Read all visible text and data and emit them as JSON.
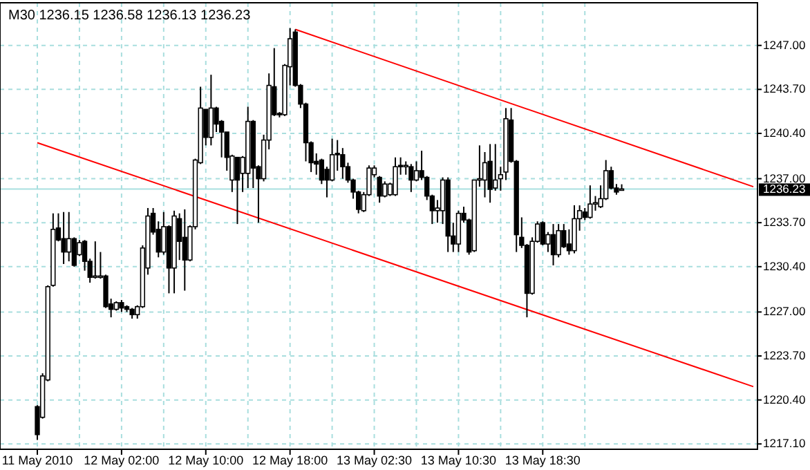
{
  "chart_data": {
    "type": "candlestick",
    "title": "M30 1236.15 1236.58 1236.13 1236.23",
    "categories": [
      "11 May 2010",
      null,
      null,
      null,
      null,
      null,
      null,
      null,
      null,
      null,
      null,
      null,
      null,
      null,
      null,
      null,
      "12 May 02:00",
      null,
      null,
      null,
      null,
      null,
      null,
      null,
      null,
      null,
      null,
      null,
      null,
      null,
      null,
      null,
      "12 May 10:00",
      null,
      null,
      null,
      null,
      null,
      null,
      null,
      null,
      null,
      null,
      null,
      null,
      null,
      null,
      null,
      "12 May 18:00",
      null,
      null,
      null,
      null,
      null,
      null,
      null,
      null,
      null,
      null,
      null,
      null,
      null,
      null,
      null,
      "13 May 02:30",
      null,
      null,
      null,
      null,
      null,
      null,
      null,
      null,
      null,
      null,
      null,
      null,
      null,
      null,
      null,
      "13 May 10:30",
      null,
      null,
      null,
      null,
      null,
      null,
      null,
      null,
      null,
      null,
      null,
      null,
      null,
      null,
      null,
      "13 May 18:30",
      null,
      null,
      null,
      null,
      null,
      null,
      null,
      null,
      null,
      null,
      null,
      null,
      null,
      null,
      null,
      null,
      null,
      null,
      null,
      null,
      null,
      null,
      null,
      null,
      null,
      null,
      null,
      null,
      null,
      null,
      null,
      null,
      null,
      null,
      null,
      null,
      null,
      null,
      null,
      null
    ],
    "ohlc": [
      [
        1219.9,
        1220.0,
        1217.4,
        1217.8
      ],
      [
        1219.1,
        1222.4,
        1219.0,
        1222.2
      ],
      [
        1221.9,
        1229.0,
        1221.8,
        1228.9
      ],
      [
        1229.0,
        1234.4,
        1228.9,
        1233.2
      ],
      [
        1233.3,
        1234.4,
        1232.3,
        1232.4
      ],
      [
        1232.5,
        1234.5,
        1230.6,
        1231.5
      ],
      [
        1231.5,
        1234.5,
        1230.8,
        1232.5
      ],
      [
        1232.5,
        1232.6,
        1230.4,
        1230.5
      ],
      [
        1231.3,
        1232.4,
        1231.2,
        1232.2
      ],
      [
        1232.3,
        1232.4,
        1230.1,
        1230.8
      ],
      [
        1230.8,
        1231.0,
        1229.2,
        1229.6
      ],
      [
        1229.6,
        1232.3,
        1229.5,
        1229.7
      ],
      [
        1229.6,
        1231.5,
        1229.5,
        1229.7
      ],
      [
        1229.7,
        1229.8,
        1227.3,
        1227.4
      ],
      [
        1227.6,
        1228.0,
        1226.6,
        1227.2
      ],
      [
        1227.2,
        1227.8,
        1227.1,
        1227.7
      ],
      [
        1227.7,
        1227.9,
        1227.0,
        1227.3
      ],
      [
        1227.4,
        1227.5,
        1227.0,
        1227.2
      ],
      [
        1227.2,
        1227.3,
        1226.5,
        1226.8
      ],
      [
        1226.8,
        1227.5,
        1226.5,
        1227.4
      ],
      [
        1227.4,
        1232.0,
        1227.3,
        1231.8
      ],
      [
        1230.3,
        1234.8,
        1229.8,
        1234.2
      ],
      [
        1234.4,
        1234.8,
        1232.8,
        1233.0
      ],
      [
        1233.2,
        1233.8,
        1231.1,
        1231.5
      ],
      [
        1231.5,
        1234.5,
        1231.3,
        1233.4
      ],
      [
        1233.4,
        1233.5,
        1228.4,
        1230.3
      ],
      [
        1230.3,
        1234.6,
        1228.4,
        1234.2
      ],
      [
        1234.0,
        1234.4,
        1230.9,
        1232.3
      ],
      [
        1232.6,
        1234.7,
        1228.6,
        1230.9
      ],
      [
        1230.9,
        1233.5,
        1230.8,
        1233.4
      ],
      [
        1233.4,
        1238.5,
        1233.2,
        1238.4
      ],
      [
        1238.2,
        1243.9,
        1238.1,
        1242.3
      ],
      [
        1242.2,
        1242.2,
        1239.5,
        1240.1
      ],
      [
        1240.1,
        1244.8,
        1239.5,
        1242.3
      ],
      [
        1242.3,
        1242.4,
        1240.5,
        1241.1
      ],
      [
        1241.3,
        1241.4,
        1238.6,
        1240.5
      ],
      [
        1240.5,
        1240.5,
        1237.6,
        1238.6
      ],
      [
        1236.9,
        1238.8,
        1236.0,
        1238.7
      ],
      [
        1238.6,
        1238.6,
        1233.6,
        1236.9
      ],
      [
        1237.4,
        1238.7,
        1236.0,
        1238.6
      ],
      [
        1237.4,
        1242.4,
        1236.3,
        1241.3
      ],
      [
        1241.3,
        1241.4,
        1236.3,
        1237.8
      ],
      [
        1237.9,
        1238.0,
        1233.7,
        1237.0
      ],
      [
        1237.0,
        1240.3,
        1236.8,
        1239.9
      ],
      [
        1239.9,
        1244.9,
        1239.2,
        1244.0
      ],
      [
        1243.9,
        1246.8,
        1241.7,
        1241.8
      ],
      [
        1241.9,
        1242.0,
        1241.6,
        1241.8
      ],
      [
        1241.8,
        1245.6,
        1241.7,
        1245.5
      ],
      [
        1245.4,
        1248.3,
        1244.0,
        1247.5
      ],
      [
        1248.0,
        1248.2,
        1243.9,
        1244.0
      ],
      [
        1244.0,
        1244.1,
        1242.3,
        1242.6
      ],
      [
        1242.6,
        1242.7,
        1238.3,
        1239.7
      ],
      [
        1239.7,
        1239.8,
        1237.5,
        1238.2
      ],
      [
        1238.3,
        1238.9,
        1237.3,
        1238.1
      ],
      [
        1238.4,
        1238.5,
        1236.6,
        1236.9
      ],
      [
        1237.7,
        1237.9,
        1235.6,
        1236.9
      ],
      [
        1236.9,
        1240.0,
        1236.8,
        1238.8
      ],
      [
        1238.9,
        1239.9,
        1237.6,
        1238.8
      ],
      [
        1238.8,
        1239.3,
        1237.0,
        1237.9
      ],
      [
        1237.9,
        1238.2,
        1236.7,
        1236.9
      ],
      [
        1236.9,
        1237.0,
        1235.5,
        1236.0
      ],
      [
        1236.0,
        1236.1,
        1234.4,
        1234.7
      ],
      [
        1234.6,
        1236.0,
        1234.5,
        1235.8
      ],
      [
        1235.8,
        1238.0,
        1235.7,
        1237.8
      ],
      [
        1237.3,
        1238.0,
        1237.1,
        1237.8
      ],
      [
        1237.1,
        1237.2,
        1235.2,
        1235.7
      ],
      [
        1235.7,
        1236.8,
        1235.6,
        1236.6
      ],
      [
        1235.8,
        1236.7,
        1235.7,
        1236.6
      ],
      [
        1235.8,
        1238.6,
        1235.7,
        1237.9
      ],
      [
        1238.0,
        1238.6,
        1237.3,
        1237.9
      ],
      [
        1237.9,
        1238.3,
        1237.3,
        1238.0
      ],
      [
        1237.9,
        1238.1,
        1236.0,
        1236.9
      ],
      [
        1236.9,
        1238.3,
        1236.8,
        1237.6
      ],
      [
        1237.6,
        1239.1,
        1236.9,
        1237.1
      ],
      [
        1237.1,
        1237.2,
        1235.4,
        1235.7
      ],
      [
        1235.7,
        1235.8,
        1233.6,
        1234.6
      ],
      [
        1234.6,
        1235.4,
        1233.7,
        1234.8
      ],
      [
        1234.6,
        1237.1,
        1233.6,
        1236.9
      ],
      [
        1236.9,
        1237.1,
        1231.5,
        1232.7
      ],
      [
        1232.7,
        1233.7,
        1231.5,
        1232.1
      ],
      [
        1232.1,
        1234.6,
        1231.5,
        1234.4
      ],
      [
        1234.4,
        1234.9,
        1233.7,
        1233.9
      ],
      [
        1233.9,
        1234.0,
        1231.3,
        1231.5
      ],
      [
        1231.6,
        1236.9,
        1231.5,
        1236.9
      ],
      [
        1236.9,
        1239.5,
        1236.4,
        1237.0
      ],
      [
        1236.9,
        1239.0,
        1235.6,
        1238.2
      ],
      [
        1238.3,
        1239.6,
        1235.2,
        1236.2
      ],
      [
        1236.3,
        1239.6,
        1236.1,
        1236.9
      ],
      [
        1237.0,
        1237.9,
        1236.1,
        1237.3
      ],
      [
        1237.5,
        1242.3,
        1236.9,
        1241.5
      ],
      [
        1241.4,
        1242.3,
        1238.2,
        1238.3
      ],
      [
        1238.3,
        1238.4,
        1231.5,
        1232.8
      ],
      [
        1232.6,
        1234.1,
        1231.8,
        1232.0
      ],
      [
        1232.0,
        1232.1,
        1226.6,
        1228.4
      ],
      [
        1228.4,
        1232.6,
        1228.3,
        1232.3
      ],
      [
        1232.3,
        1233.8,
        1232.2,
        1233.6
      ],
      [
        1233.7,
        1233.8,
        1232.0,
        1232.1
      ],
      [
        1232.1,
        1233.0,
        1231.5,
        1232.8
      ],
      [
        1232.8,
        1233.6,
        1230.5,
        1231.3
      ],
      [
        1231.3,
        1233.6,
        1231.1,
        1233.1
      ],
      [
        1233.1,
        1233.6,
        1231.8,
        1231.9
      ],
      [
        1232.1,
        1233.2,
        1231.3,
        1231.6
      ],
      [
        1231.6,
        1235.0,
        1231.4,
        1234.0
      ],
      [
        1234.0,
        1235.0,
        1233.1,
        1234.6
      ],
      [
        1234.5,
        1234.8,
        1233.9,
        1234.1
      ],
      [
        1234.1,
        1236.5,
        1234.0,
        1235.1
      ],
      [
        1235.1,
        1235.7,
        1234.6,
        1235.2
      ],
      [
        1234.9,
        1236.5,
        1234.8,
        1235.5
      ],
      [
        1235.5,
        1238.4,
        1235.4,
        1237.6
      ],
      [
        1237.6,
        1237.9,
        1236.2,
        1236.3
      ],
      [
        1236.3,
        1236.6,
        1235.8,
        1236.0
      ],
      [
        1236.15,
        1236.58,
        1236.13,
        1236.23
      ],
      null,
      null,
      null,
      null,
      null,
      null,
      null,
      null,
      null,
      null,
      null,
      null,
      null,
      null,
      null,
      null,
      null,
      null,
      null,
      null,
      null,
      null,
      null,
      null,
      null
    ],
    "series": [
      {
        "type": "line",
        "color": "#ff0000",
        "values": [
          null,
          null,
          null,
          null,
          null,
          null,
          null,
          null,
          null,
          null,
          null,
          null,
          null,
          null,
          null,
          null,
          null,
          null,
          null,
          null,
          null,
          null,
          null,
          null,
          null,
          null,
          null,
          null,
          null,
          null,
          null,
          null,
          null,
          null,
          null,
          null,
          null,
          null,
          null,
          null,
          null,
          null,
          null,
          null,
          null,
          null,
          null,
          null,
          null,
          1248.2,
          null,
          null,
          null,
          null,
          null,
          null,
          null,
          null,
          null,
          null,
          null,
          null,
          null,
          null,
          null,
          null,
          null,
          null,
          null,
          null,
          null,
          null,
          null,
          null,
          null,
          null,
          null,
          null,
          null,
          null,
          null,
          null,
          null,
          null,
          null,
          null,
          null,
          null,
          null,
          null,
          null,
          null,
          null,
          null,
          null,
          null,
          null,
          null,
          null,
          null,
          null,
          null,
          null,
          null,
          null,
          null,
          null,
          null,
          null,
          null,
          null,
          null,
          null,
          null,
          null,
          null,
          null,
          null,
          null,
          null,
          null,
          null,
          null,
          null,
          null,
          null,
          null,
          null,
          null,
          null,
          null,
          null,
          null,
          null,
          null,
          null,
          1236.4
        ]
      },
      {
        "type": "line",
        "color": "#ff0000",
        "values": [
          1239.7,
          null,
          null,
          null,
          null,
          null,
          null,
          null,
          null,
          null,
          null,
          null,
          null,
          null,
          null,
          null,
          null,
          null,
          null,
          null,
          null,
          null,
          null,
          null,
          null,
          null,
          null,
          null,
          null,
          null,
          null,
          null,
          null,
          null,
          null,
          null,
          null,
          null,
          null,
          null,
          null,
          null,
          null,
          null,
          null,
          null,
          null,
          null,
          null,
          null,
          null,
          null,
          null,
          null,
          null,
          null,
          null,
          null,
          null,
          null,
          null,
          null,
          null,
          null,
          null,
          null,
          null,
          null,
          null,
          null,
          null,
          null,
          null,
          null,
          null,
          null,
          null,
          null,
          null,
          null,
          null,
          null,
          null,
          null,
          null,
          null,
          null,
          null,
          null,
          null,
          null,
          null,
          null,
          null,
          null,
          null,
          null,
          null,
          null,
          null,
          null,
          null,
          null,
          null,
          null,
          null,
          null,
          null,
          null,
          null,
          null,
          null,
          null,
          null,
          null,
          null,
          null,
          null,
          null,
          null,
          null,
          null,
          null,
          null,
          null,
          null,
          null,
          null,
          null,
          null,
          null,
          null,
          null,
          null,
          null,
          null,
          1221.4
        ]
      }
    ],
    "ylim": [
      1216.7,
      1250.2
    ],
    "yticks": [
      {
        "value": 1247.0,
        "label": "1247.00"
      },
      {
        "value": 1243.7,
        "label": "1243.70"
      },
      {
        "value": 1240.4,
        "label": "1240.40"
      },
      {
        "value": 1237.0,
        "label": "1237.00"
      },
      {
        "value": 1233.7,
        "label": "1233.70"
      },
      {
        "value": 1230.4,
        "label": "1230.40"
      },
      {
        "value": 1227.0,
        "label": "1227.00"
      },
      {
        "value": 1223.7,
        "label": "1223.70"
      },
      {
        "value": 1220.4,
        "label": "1220.40"
      },
      {
        "value": 1217.1,
        "label": "1217.10"
      }
    ],
    "grid": true,
    "ref_lines": [
      {
        "axis": "y",
        "value": 1236.23,
        "label": "1236.23",
        "color": "#a8e0e0"
      }
    ]
  }
}
